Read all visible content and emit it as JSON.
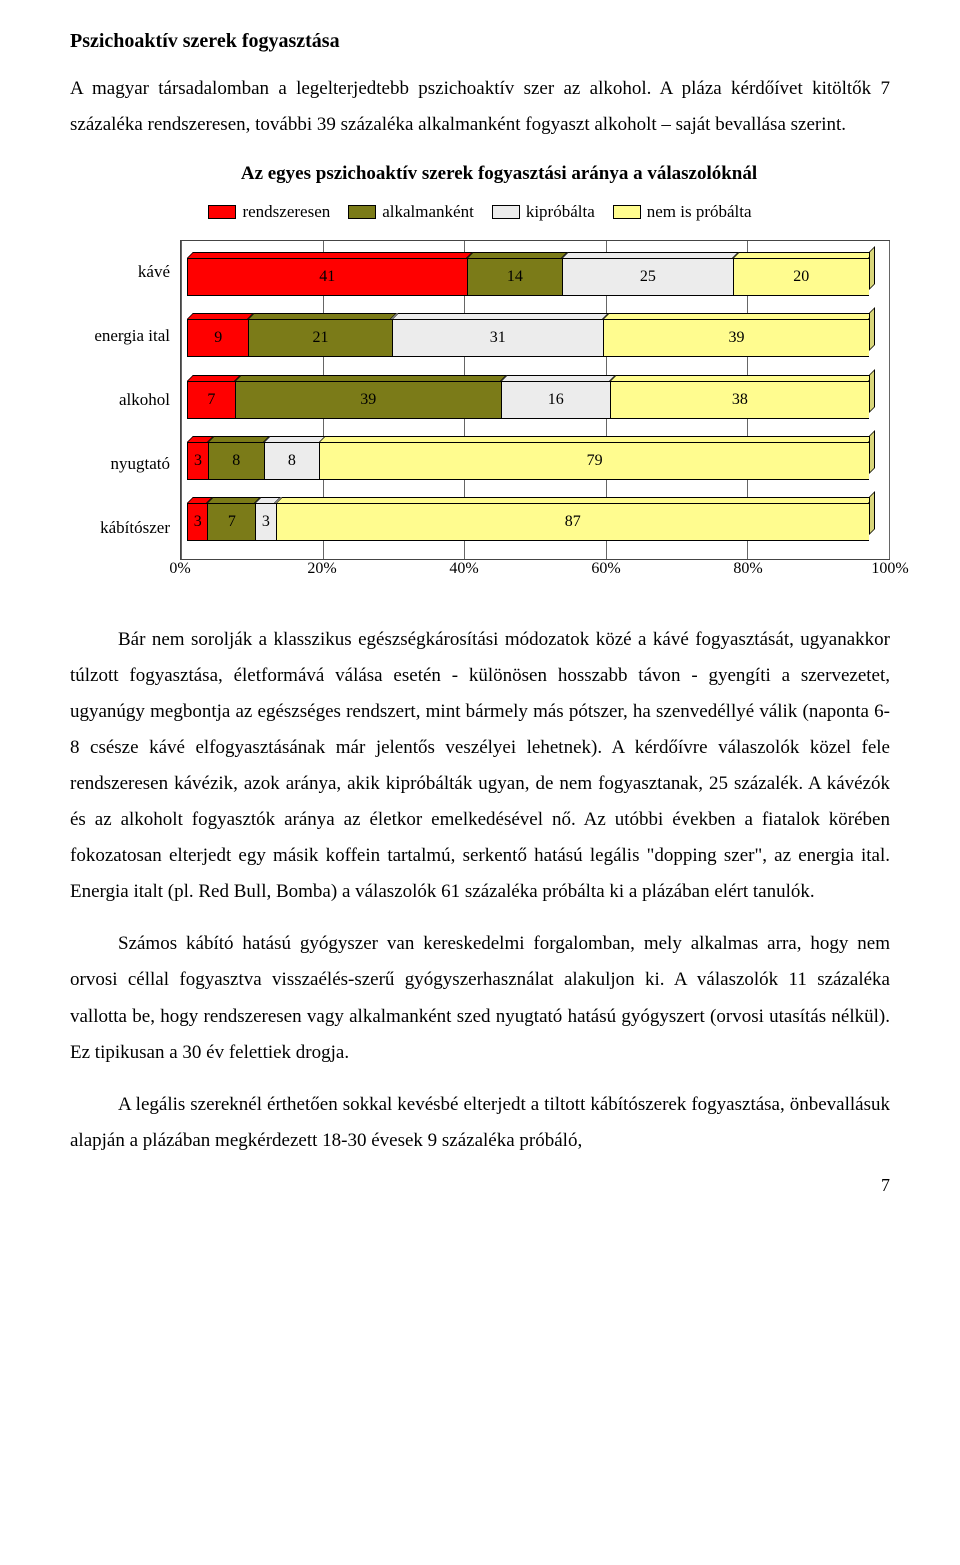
{
  "heading": "Pszichoaktív szerek fogyasztása",
  "para1": "A magyar társadalomban a legelterjedtebb pszichoaktív szer az alkohol. A pláza kérdőívet kitöltők 7 százaléka rendszeresen, további 39 százaléka alkalmanként fogyaszt alkoholt – saját bevallása szerint.",
  "chart": {
    "title": "Az egyes pszichoaktív szerek fogyasztási aránya a válaszolóknál",
    "legend": [
      {
        "label": "rendszeresen",
        "color": "#ff0000"
      },
      {
        "label": "alkalmanként",
        "color": "#7b7b18"
      },
      {
        "label": "kipróbálta",
        "color": "#ececec"
      },
      {
        "label": "nem is próbálta",
        "color": "#fffc8f"
      }
    ],
    "categories": [
      "kávé",
      "energia ital",
      "alkohol",
      "nyugtató",
      "kábítószer"
    ],
    "series": [
      [
        41,
        14,
        25,
        20
      ],
      [
        9,
        21,
        31,
        39
      ],
      [
        7,
        39,
        16,
        38
      ],
      [
        3,
        8,
        8,
        79
      ],
      [
        3,
        7,
        3,
        87
      ]
    ],
    "xticks": [
      "0%",
      "20%",
      "40%",
      "60%",
      "80%",
      "100%"
    ],
    "grid_color": "#666666",
    "bg_color": "#ffffff",
    "label_fontsize": 17
  },
  "para2": "Bár nem sorolják a klasszikus egészségkárosítási módozatok közé a kávé fogyasztását, ugyanakkor túlzott fogyasztása, életformává válása esetén - különösen hosszabb távon - gyengíti a szervezetet, ugyanúgy megbontja az egészséges rendszert, mint bármely más pótszer, ha szenvedéllyé válik (naponta 6-8 csésze kávé elfogyasztásának már jelentős veszélyei lehetnek). A kérdőívre válaszolók közel fele rendszeresen kávézik, azok aránya, akik kipróbálták ugyan, de nem fogyasztanak, 25 százalék. A kávézók és az alkoholt fogyasztók aránya az életkor emelkedésével nő. Az utóbbi években a fiatalok körében fokozatosan elterjedt egy másik koffein tartalmú, serkentő hatású legális \"dopping szer\", az energia ital. Energia italt (pl. Red Bull, Bomba) a válaszolók 61 százaléka próbálta ki a plázában elért tanulók.",
  "para3": "Számos kábító hatású gyógyszer van kereskedelmi forgalomban, mely alkalmas arra, hogy nem orvosi céllal fogyasztva visszaélés-szerű gyógyszerhasználat alakuljon ki. A válaszolók 11 százaléka vallotta be, hogy rendszeresen vagy alkalmanként szed nyugtató hatású gyógyszert (orvosi utasítás nélkül). Ez tipikusan a 30 év felettiek drogja.",
  "para4": "A legális szereknél érthetően sokkal kevésbé elterjedt a tiltott kábítószerek fogyasztása, önbevallásuk alapján a plázában megkérdezett 18-30 évesek 9 százaléka próbáló,",
  "page_number": "7"
}
